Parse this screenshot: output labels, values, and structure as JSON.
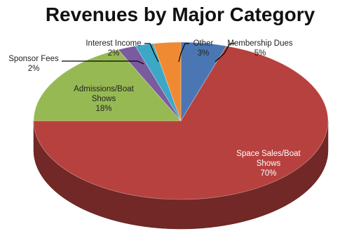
{
  "chart_data": {
    "type": "pie",
    "title": "Revenues by Major Category",
    "three_d": true,
    "slices": [
      {
        "name": "Membership Dues",
        "value": 5,
        "label_value": "5%",
        "color": "#4a77b4"
      },
      {
        "name": "Space Sales/Boat Shows",
        "value": 70,
        "label_value": "70%",
        "color": "#b7413e"
      },
      {
        "name": "Admissions/Boat Shows",
        "value": 18,
        "label_value": "18%",
        "color": "#97b953"
      },
      {
        "name": "Sponsor Fees",
        "value": 2,
        "label_value": "2%",
        "color": "#7b5b9f"
      },
      {
        "name": "Interest Income",
        "value": 2,
        "label_value": "2%",
        "color": "#3fa7c6"
      },
      {
        "name": "Other",
        "value": 3,
        "label_value": "3%",
        "color": "#f08a32"
      }
    ]
  }
}
